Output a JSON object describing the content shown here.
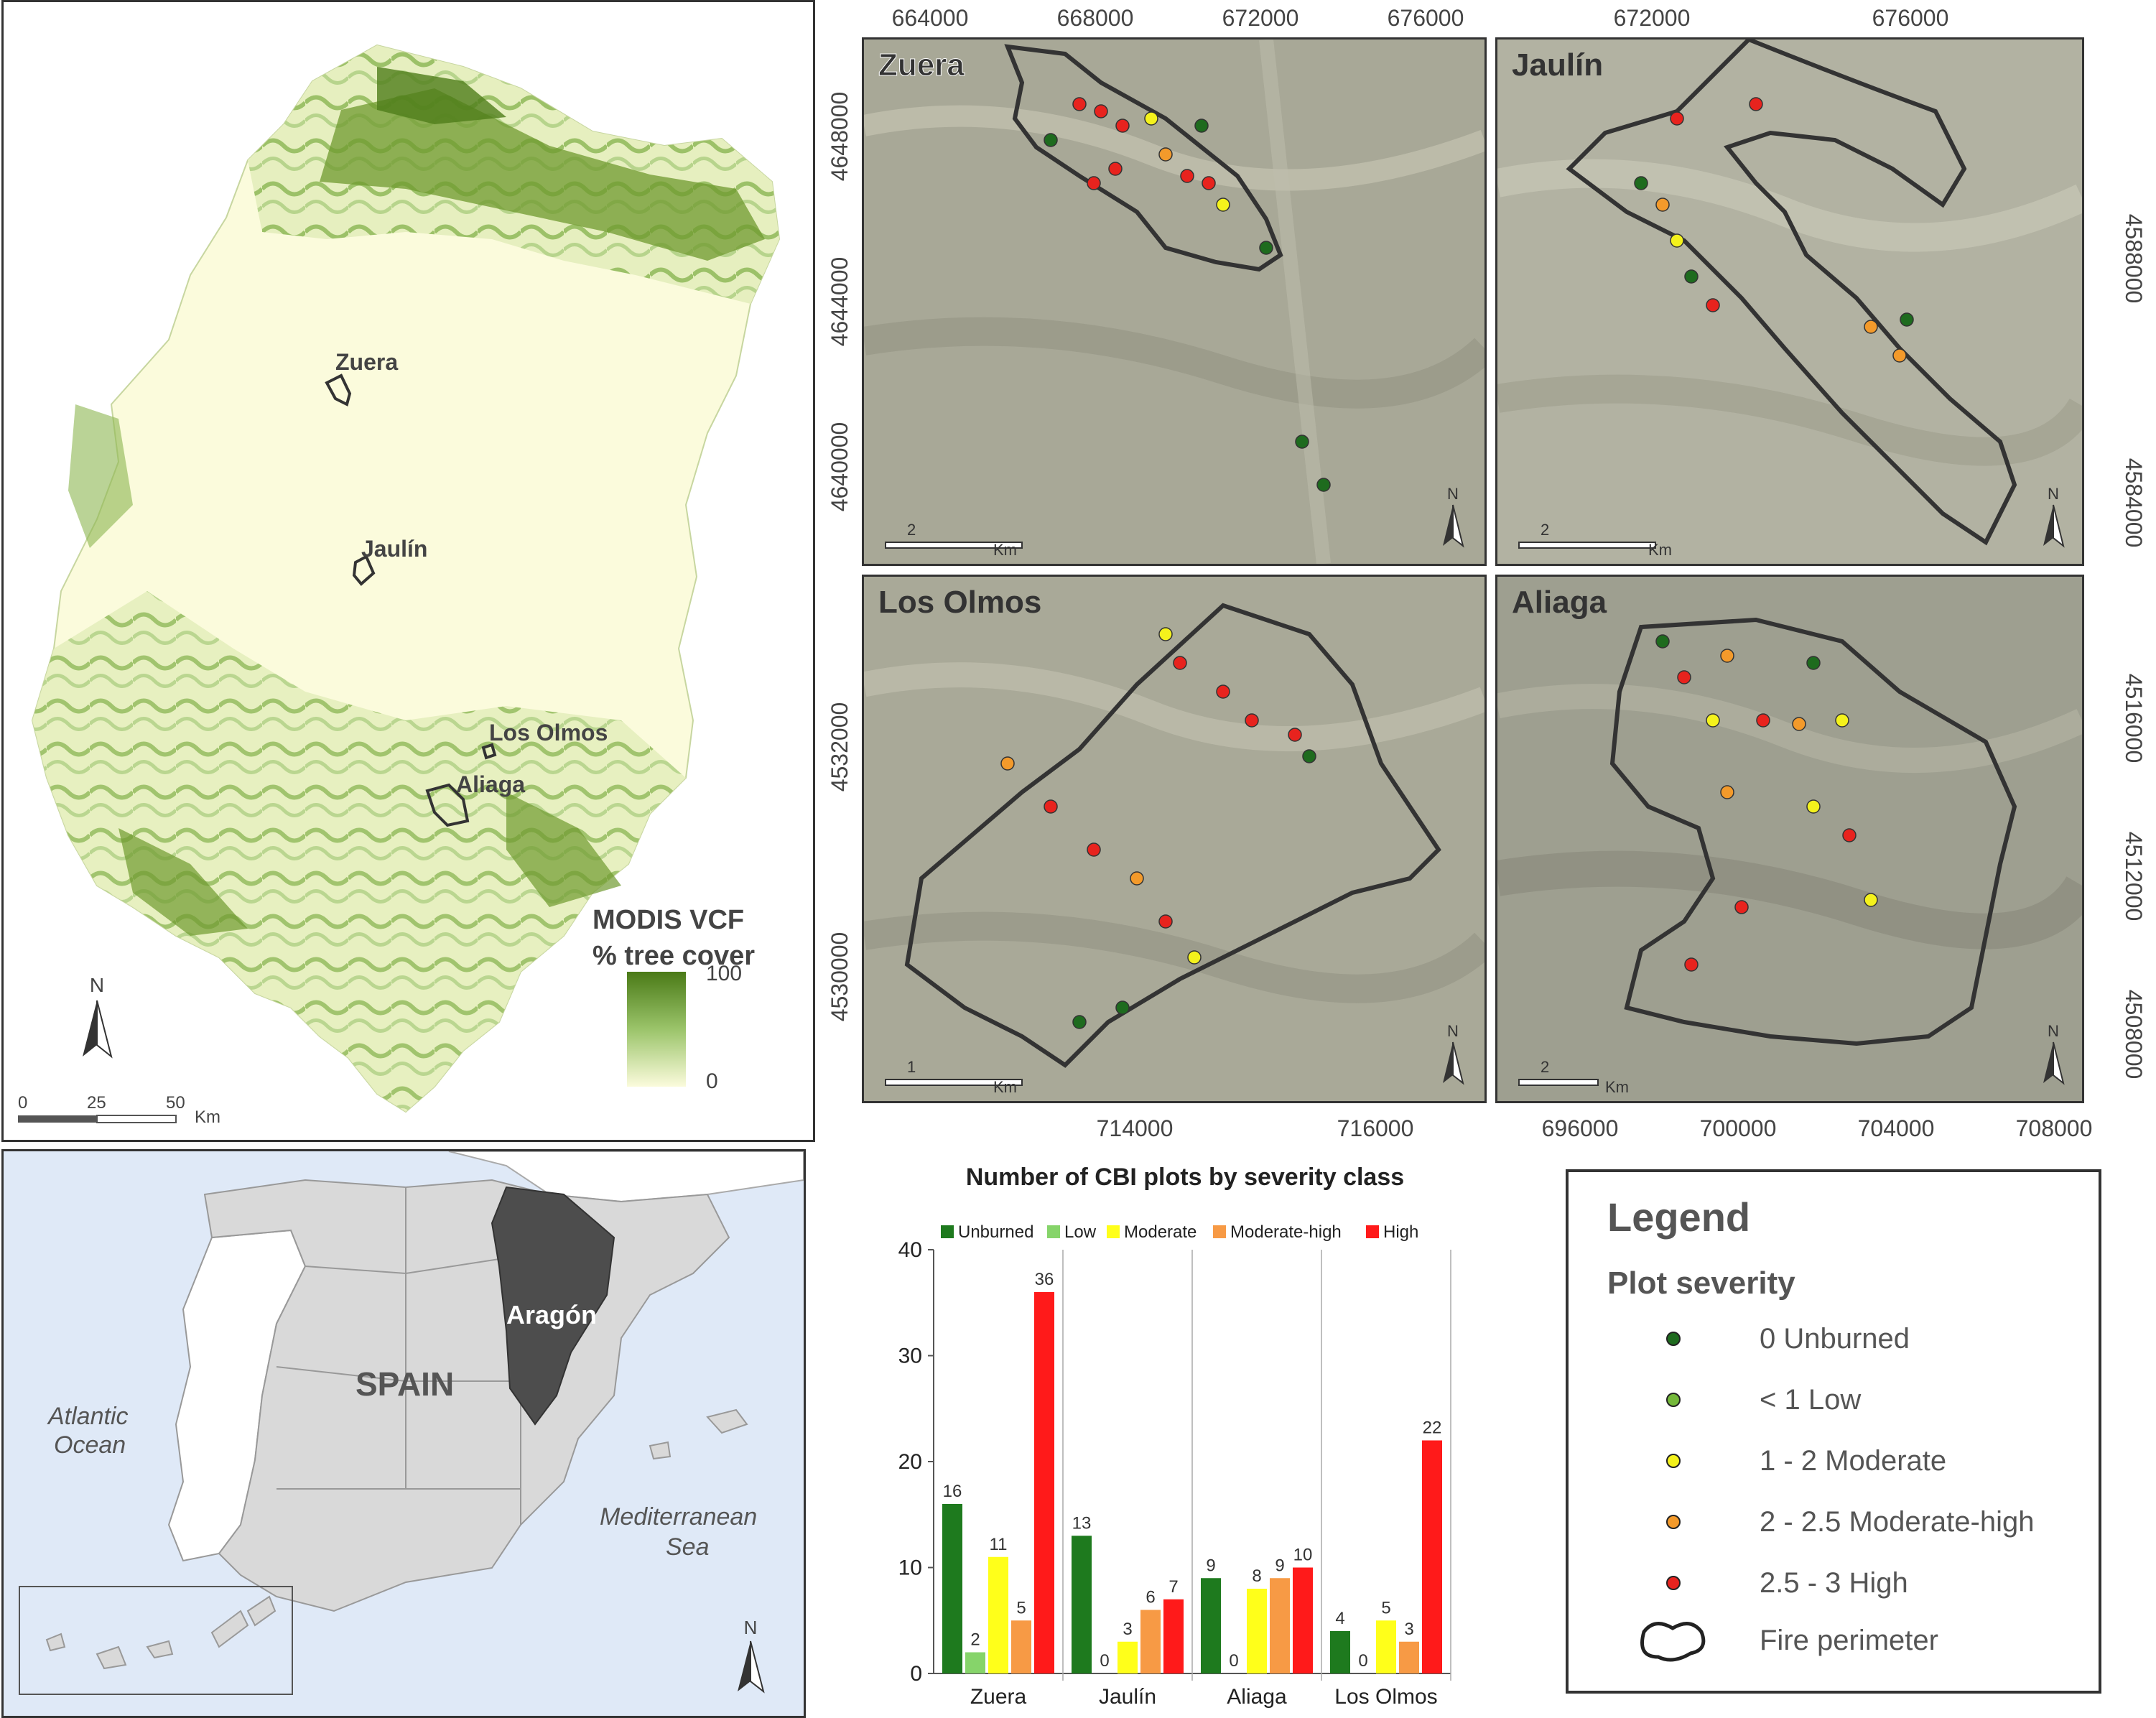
{
  "aragon_map": {
    "sites": [
      {
        "name": "Zuera"
      },
      {
        "name": "Jaulín"
      },
      {
        "name": "Los Olmos"
      },
      {
        "name": "Aliaga"
      }
    ],
    "legend_title_1": "MODIS VCF",
    "legend_title_2": "% tree cover",
    "legend_max": "100",
    "legend_min": "0",
    "north": "N",
    "scale": {
      "ticks": [
        "0",
        "25",
        "50"
      ],
      "unit": "Km"
    },
    "colors": {
      "low": "#fbfbdc",
      "high": "#4a7a17",
      "perimeter": "#333333"
    }
  },
  "spain_map": {
    "region_label": "Aragón",
    "country_label": "SPAIN",
    "ocean_label_1": "Atlantic",
    "ocean_label_2": "Ocean",
    "sea_label_1": "Mediterranean",
    "sea_label_2": "Sea",
    "north": "N",
    "colors": {
      "sea": "#dfe9f7",
      "spain": "#d9d9d9",
      "aragon": "#4d4d4d",
      "portugal": "#ffffff"
    }
  },
  "fire_maps": [
    {
      "name": "Zuera",
      "scale_value": "2",
      "scale_unit": "Km",
      "north": "N",
      "x_ticks": [
        "664000",
        "668000",
        "672000",
        "676000"
      ],
      "y_ticks": [
        "4648000",
        "4644000",
        "4640000"
      ]
    },
    {
      "name": "Jaulín",
      "scale_value": "2",
      "scale_unit": "Km",
      "north": "N",
      "x_ticks": [
        "672000",
        "676000"
      ],
      "y_ticks": [
        "4588000",
        "4584000"
      ]
    },
    {
      "name": "Los Olmos",
      "scale_value": "1",
      "scale_unit": "Km",
      "north": "N",
      "x_ticks": [
        "714000",
        "716000"
      ],
      "y_ticks": [
        "4532000",
        "4530000"
      ]
    },
    {
      "name": "Aliaga",
      "scale_value": "2",
      "scale_unit": "Km",
      "north": "N",
      "x_ticks": [
        "696000",
        "700000",
        "704000",
        "708000"
      ],
      "y_ticks": [
        "4516000",
        "4512000",
        "4508000"
      ]
    }
  ],
  "legend": {
    "title": "Legend",
    "subtitle": "Plot severity",
    "items": [
      {
        "label": "0 Unburned",
        "color": "#1e6b1e"
      },
      {
        "label": "< 1 Low",
        "color": "#74b83a"
      },
      {
        "label": "1 - 2 Moderate",
        "color": "#f4f21c"
      },
      {
        "label": "2 - 2.5 Moderate-high",
        "color": "#f39a2b"
      },
      {
        "label": "2.5 - 3 High",
        "color": "#e8231e"
      }
    ],
    "perimeter_label": "Fire perimeter"
  },
  "chart_data": {
    "type": "bar",
    "title": "Number of CBI plots by severity class",
    "categories": [
      "Zuera",
      "Jaulín",
      "Aliaga",
      "Los Olmos"
    ],
    "series": [
      {
        "name": "Unburned",
        "color": "#1e7a1e",
        "values": [
          16,
          13,
          9,
          4
        ]
      },
      {
        "name": "Low",
        "color": "#86d46a",
        "values": [
          2,
          0,
          0,
          0
        ]
      },
      {
        "name": "Moderate",
        "color": "#ffff1a",
        "values": [
          11,
          3,
          8,
          5
        ]
      },
      {
        "name": "Moderate-high",
        "color": "#f79a45",
        "values": [
          5,
          6,
          9,
          3
        ]
      },
      {
        "name": "High",
        "color": "#ff1a1a",
        "values": [
          36,
          7,
          10,
          22
        ]
      }
    ],
    "ylim": [
      0,
      40
    ],
    "y_ticks": [
      "0",
      "10",
      "20",
      "30",
      "40"
    ],
    "legend_position": "top",
    "grid": false
  }
}
